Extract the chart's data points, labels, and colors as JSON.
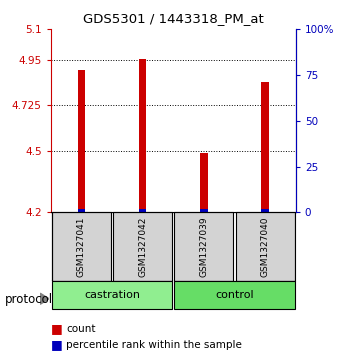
{
  "title": "GDS5301 / 1443318_PM_at",
  "samples": [
    "GSM1327041",
    "GSM1327042",
    "GSM1327039",
    "GSM1327040"
  ],
  "bar_values": [
    4.9,
    4.955,
    4.49,
    4.84
  ],
  "bar_color": "#cc0000",
  "percentile_color": "#0000bb",
  "ymin": 4.2,
  "ymax": 5.1,
  "yticks_left": [
    4.2,
    4.5,
    4.725,
    4.95,
    5.1
  ],
  "yticks_right": [
    0,
    25,
    50,
    75,
    100
  ],
  "yticks_right_labels": [
    "0",
    "25",
    "50",
    "75",
    "100%"
  ],
  "grid_values": [
    4.5,
    4.725,
    4.95
  ],
  "left_axis_color": "#cc0000",
  "right_axis_color": "#0000bb",
  "sample_box_color": "#d3d3d3",
  "castration_color": "#90ee90",
  "control_color": "#66dd66",
  "protocol_label": "protocol",
  "background_color": "#ffffff",
  "bar_width": 0.12,
  "blue_bar_height": 0.018,
  "blue_bar_width": 0.12
}
